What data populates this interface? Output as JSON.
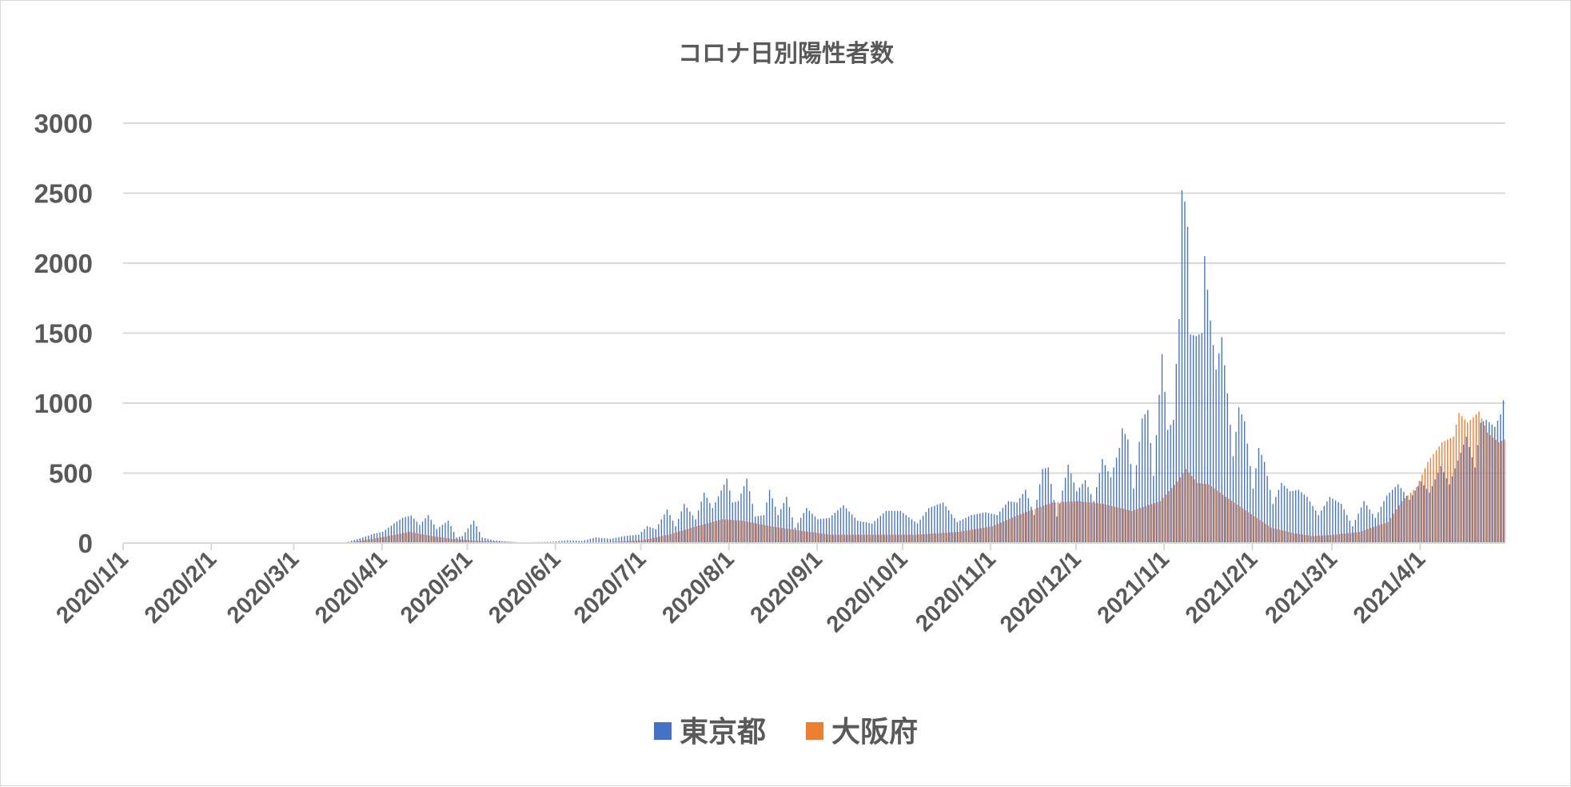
{
  "chart_data": {
    "type": "bar",
    "title": "コロナ日別陽性者数",
    "x_start": "2020/1/1",
    "x_end": "2021/4/30",
    "x_tick_labels": [
      "2020/1/1",
      "2020/2/1",
      "2020/3/1",
      "2020/4/1",
      "2020/5/1",
      "2020/6/1",
      "2020/7/1",
      "2020/8/1",
      "2020/9/1",
      "2020/10/1",
      "2020/11/1",
      "2020/12/1",
      "2021/1/1",
      "2021/2/1",
      "2021/3/1",
      "2021/4/1"
    ],
    "y_ticks": [
      0,
      500,
      1000,
      1500,
      2000,
      2500,
      3000
    ],
    "ylim": [
      0,
      3000
    ],
    "grid": true,
    "legend_position": "bottom",
    "series_colors": [
      "#4472c4",
      "#ed7d31"
    ],
    "series": [
      {
        "name": "東京都",
        "color": "#4472c4",
        "points": [
          [
            "2020/3/20",
            10
          ],
          [
            "2020/3/25",
            40
          ],
          [
            "2020/3/29",
            68
          ],
          [
            "2020/4/1",
            80
          ],
          [
            "2020/4/5",
            140
          ],
          [
            "2020/4/8",
            180
          ],
          [
            "2020/4/11",
            197
          ],
          [
            "2020/4/14",
            130
          ],
          [
            "2020/4/17",
            200
          ],
          [
            "2020/4/20",
            100
          ],
          [
            "2020/4/24",
            160
          ],
          [
            "2020/4/27",
            40
          ],
          [
            "2020/4/29",
            50
          ],
          [
            "2020/5/3",
            160
          ],
          [
            "2020/5/6",
            40
          ],
          [
            "2020/5/10",
            20
          ],
          [
            "2020/5/15",
            10
          ],
          [
            "2020/5/20",
            5
          ],
          [
            "2020/5/31",
            10
          ],
          [
            "2020/6/5",
            20
          ],
          [
            "2020/6/10",
            15
          ],
          [
            "2020/6/15",
            40
          ],
          [
            "2020/6/20",
            30
          ],
          [
            "2020/6/25",
            50
          ],
          [
            "2020/6/30",
            60
          ],
          [
            "2020/7/3",
            120
          ],
          [
            "2020/7/6",
            100
          ],
          [
            "2020/7/10",
            240
          ],
          [
            "2020/7/13",
            120
          ],
          [
            "2020/7/16",
            280
          ],
          [
            "2020/7/20",
            170
          ],
          [
            "2020/7/23",
            360
          ],
          [
            "2020/7/26",
            250
          ],
          [
            "2020/7/31",
            460
          ],
          [
            "2020/8/2",
            290
          ],
          [
            "2020/8/4",
            300
          ],
          [
            "2020/8/7",
            460
          ],
          [
            "2020/8/10",
            190
          ],
          [
            "2020/8/13",
            200
          ],
          [
            "2020/8/15",
            380
          ],
          [
            "2020/8/18",
            200
          ],
          [
            "2020/8/21",
            330
          ],
          [
            "2020/8/24",
            110
          ],
          [
            "2020/8/28",
            250
          ],
          [
            "2020/9/1",
            170
          ],
          [
            "2020/9/5",
            180
          ],
          [
            "2020/9/10",
            270
          ],
          [
            "2020/9/15",
            160
          ],
          [
            "2020/9/20",
            140
          ],
          [
            "2020/9/25",
            230
          ],
          [
            "2020/9/30",
            230
          ],
          [
            "2020/10/2",
            200
          ],
          [
            "2020/10/6",
            140
          ],
          [
            "2020/10/10",
            250
          ],
          [
            "2020/10/15",
            290
          ],
          [
            "2020/10/20",
            150
          ],
          [
            "2020/10/25",
            200
          ],
          [
            "2020/10/30",
            220
          ],
          [
            "2020/11/3",
            200
          ],
          [
            "2020/11/7",
            300
          ],
          [
            "2020/11/10",
            290
          ],
          [
            "2020/11/13",
            380
          ],
          [
            "2020/11/16",
            200
          ],
          [
            "2020/11/19",
            530
          ],
          [
            "2020/11/21",
            540
          ],
          [
            "2020/11/24",
            190
          ],
          [
            "2020/11/28",
            560
          ],
          [
            "2020/12/1",
            370
          ],
          [
            "2020/12/4",
            450
          ],
          [
            "2020/12/7",
            300
          ],
          [
            "2020/12/10",
            600
          ],
          [
            "2020/12/13",
            470
          ],
          [
            "2020/12/16",
            680
          ],
          [
            "2020/12/17",
            820
          ],
          [
            "2020/12/19",
            740
          ],
          [
            "2020/12/21",
            390
          ],
          [
            "2020/12/24",
            890
          ],
          [
            "2020/12/26",
            950
          ],
          [
            "2020/12/28",
            480
          ],
          [
            "2020/12/31",
            1350
          ],
          [
            "2021/1/2",
            810
          ],
          [
            "2021/1/4",
            880
          ],
          [
            "2021/1/5",
            1280
          ],
          [
            "2021/1/6",
            1600
          ],
          [
            "2021/1/7",
            2520
          ],
          [
            "2021/1/8",
            2440
          ],
          [
            "2021/1/9",
            2260
          ],
          [
            "2021/1/10",
            1490
          ],
          [
            "2021/1/12",
            1480
          ],
          [
            "2021/1/14",
            1500
          ],
          [
            "2021/1/15",
            2050
          ],
          [
            "2021/1/16",
            1810
          ],
          [
            "2021/1/17",
            1590
          ],
          [
            "2021/1/19",
            1240
          ],
          [
            "2021/1/21",
            1470
          ],
          [
            "2021/1/23",
            1070
          ],
          [
            "2021/1/25",
            620
          ],
          [
            "2021/1/27",
            970
          ],
          [
            "2021/1/29",
            870
          ],
          [
            "2021/2/1",
            390
          ],
          [
            "2021/2/3",
            680
          ],
          [
            "2021/2/5",
            580
          ],
          [
            "2021/2/8",
            280
          ],
          [
            "2021/2/11",
            430
          ],
          [
            "2021/2/14",
            370
          ],
          [
            "2021/2/17",
            380
          ],
          [
            "2021/2/20",
            330
          ],
          [
            "2021/2/24",
            200
          ],
          [
            "2021/2/28",
            330
          ],
          [
            "2021/3/4",
            280
          ],
          [
            "2021/3/8",
            120
          ],
          [
            "2021/3/12",
            300
          ],
          [
            "2021/3/16",
            180
          ],
          [
            "2021/3/20",
            340
          ],
          [
            "2021/3/24",
            420
          ],
          [
            "2021/3/28",
            310
          ],
          [
            "2021/4/1",
            440
          ],
          [
            "2021/4/4",
            360
          ],
          [
            "2021/4/8",
            550
          ],
          [
            "2021/4/11",
            420
          ],
          [
            "2021/4/14",
            590
          ],
          [
            "2021/4/17",
            760
          ],
          [
            "2021/4/20",
            540
          ],
          [
            "2021/4/22",
            860
          ],
          [
            "2021/4/24",
            880
          ],
          [
            "2021/4/27",
            830
          ],
          [
            "2021/4/29",
            920
          ],
          [
            "2021/4/30",
            1020
          ]
        ]
      },
      {
        "name": "大阪府",
        "color": "#ed7d31",
        "points": [
          [
            "2020/3/20",
            5
          ],
          [
            "2020/3/28",
            30
          ],
          [
            "2020/4/5",
            60
          ],
          [
            "2020/4/10",
            80
          ],
          [
            "2020/4/18",
            50
          ],
          [
            "2020/4/25",
            30
          ],
          [
            "2020/5/5",
            15
          ],
          [
            "2020/5/20",
            5
          ],
          [
            "2020/6/15",
            3
          ],
          [
            "2020/7/1",
            20
          ],
          [
            "2020/7/10",
            60
          ],
          [
            "2020/7/20",
            120
          ],
          [
            "2020/7/29",
            170
          ],
          [
            "2020/8/5",
            160
          ],
          [
            "2020/8/15",
            120
          ],
          [
            "2020/8/25",
            90
          ],
          [
            "2020/9/5",
            60
          ],
          [
            "2020/9/20",
            60
          ],
          [
            "2020/10/5",
            60
          ],
          [
            "2020/10/20",
            80
          ],
          [
            "2020/11/1",
            120
          ],
          [
            "2020/11/10",
            200
          ],
          [
            "2020/11/22",
            290
          ],
          [
            "2020/12/1",
            300
          ],
          [
            "2020/12/10",
            280
          ],
          [
            "2020/12/20",
            230
          ],
          [
            "2020/12/30",
            300
          ],
          [
            "2021/1/5",
            440
          ],
          [
            "2021/1/8",
            530
          ],
          [
            "2021/1/12",
            430
          ],
          [
            "2021/1/16",
            420
          ],
          [
            "2021/1/22",
            330
          ],
          [
            "2021/1/30",
            220
          ],
          [
            "2021/2/7",
            110
          ],
          [
            "2021/2/15",
            70
          ],
          [
            "2021/2/22",
            50
          ],
          [
            "2021/3/1",
            60
          ],
          [
            "2021/3/10",
            80
          ],
          [
            "2021/3/20",
            150
          ],
          [
            "2021/3/25",
            300
          ],
          [
            "2021/3/30",
            400
          ],
          [
            "2021/4/3",
            580
          ],
          [
            "2021/4/8",
            720
          ],
          [
            "2021/4/12",
            760
          ],
          [
            "2021/4/14",
            930
          ],
          [
            "2021/4/17",
            860
          ],
          [
            "2021/4/21",
            940
          ],
          [
            "2021/4/24",
            790
          ],
          [
            "2021/4/28",
            720
          ],
          [
            "2021/4/30",
            740
          ]
        ]
      }
    ]
  }
}
